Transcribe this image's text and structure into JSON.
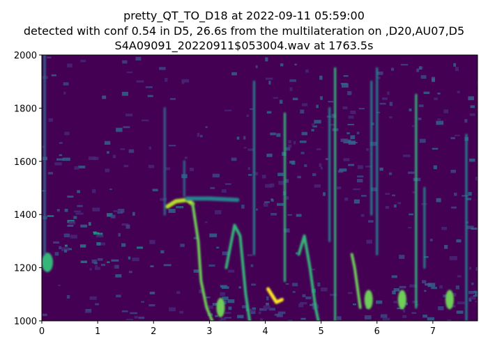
{
  "chart_data": {
    "type": "heatmap",
    "title_lines": [
      "pretty_QT_TO_D18 at 2022-09-11 05:59:00",
      "detected with conf 0.54 in D5, 26.6s from the multilateration on ,D20,AU07,D5",
      "S4A09091_20220911$053004.wav at 1763.5s"
    ],
    "xlabel": "",
    "ylabel": "",
    "xlim": [
      0,
      7.8
    ],
    "ylim": [
      1000,
      2000
    ],
    "x_ticks": [
      "0",
      "1",
      "2",
      "3",
      "4",
      "5",
      "6",
      "7"
    ],
    "y_ticks": [
      "1000",
      "1200",
      "1400",
      "1600",
      "1800",
      "2000"
    ],
    "colormap": "viridis",
    "grid": false,
    "colors": {
      "background": "#440154",
      "mid": "#31688e",
      "high": "#35b779",
      "peak": "#fde725"
    }
  }
}
